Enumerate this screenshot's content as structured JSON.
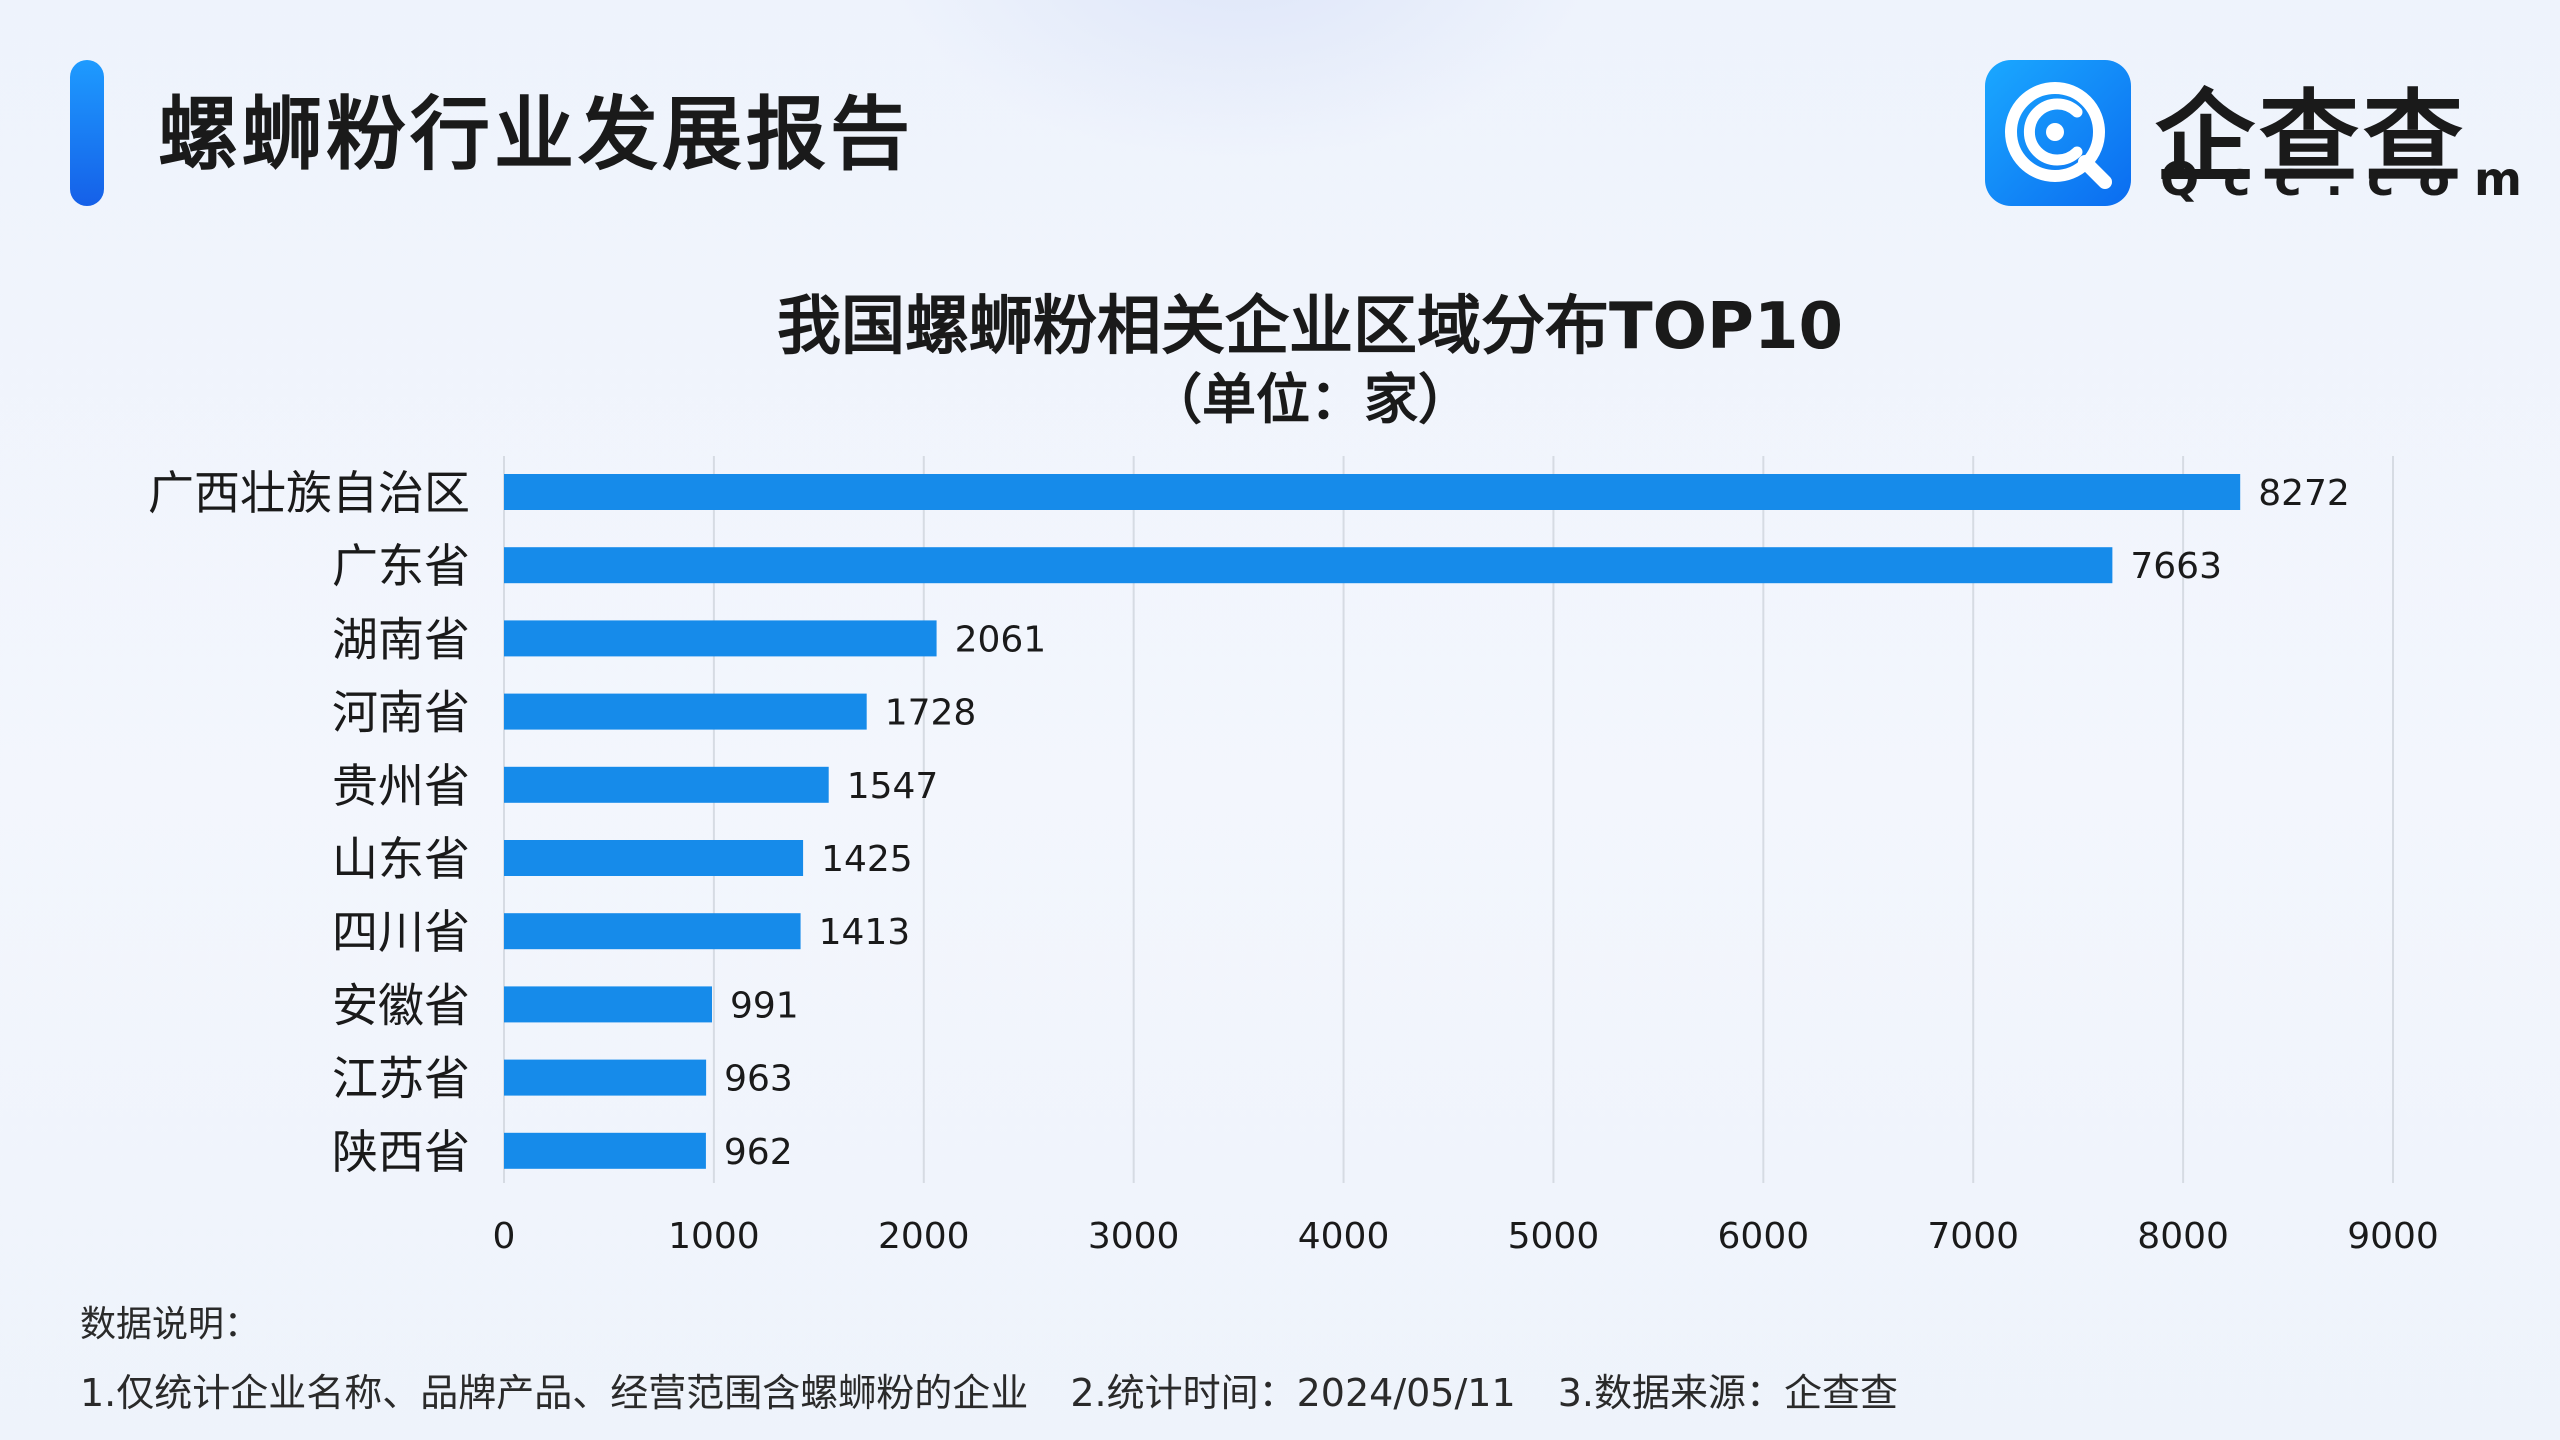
{
  "header": {
    "title": "螺蛳粉行业发展报告",
    "logo_name": "企查查",
    "logo_domain": "Qcc.com"
  },
  "chart_data": {
    "type": "bar",
    "orientation": "horizontal",
    "title": "我国螺蛳粉相关企业区域分布TOP10",
    "subtitle": "（单位：家）",
    "categories": [
      "广西壮族自治区",
      "广东省",
      "湖南省",
      "河南省",
      "贵州省",
      "山东省",
      "四川省",
      "安徽省",
      "江苏省",
      "陕西省"
    ],
    "values": [
      8272,
      7663,
      2061,
      1728,
      1547,
      1425,
      1413,
      991,
      963,
      962
    ],
    "xlim": [
      0,
      9000
    ],
    "xticks": [
      0,
      1000,
      2000,
      3000,
      4000,
      5000,
      6000,
      7000,
      8000,
      9000
    ],
    "grid": "vertical",
    "bar_color": "#168bea",
    "data_labels": true
  },
  "notes": {
    "title": "数据说明：",
    "items": [
      "1.仅统计企业名称、品牌产品、经营范围含螺蛳粉的企业",
      "2.统计时间：2024/05/11",
      "3.数据来源：企查查"
    ]
  }
}
